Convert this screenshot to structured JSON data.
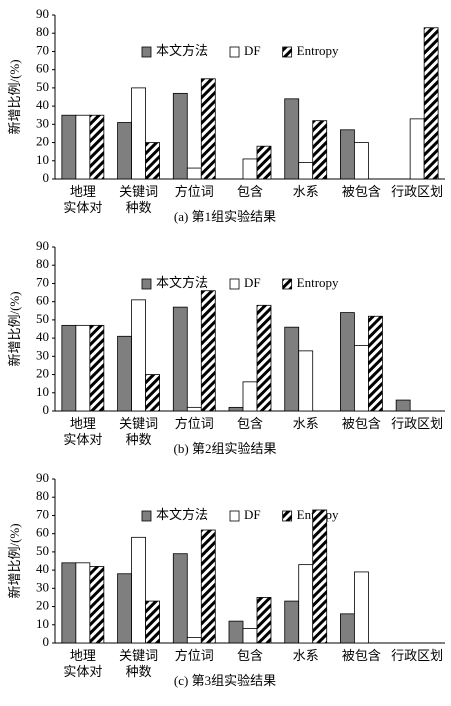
{
  "chart_data": [
    {
      "type": "bar",
      "title": "(a) 第1组实验结果",
      "y_label": "新增比例/(%)",
      "categories": [
        "地理\n实体对",
        "关键词\n种数",
        "方位词",
        "包含",
        "水系",
        "被包含",
        "行政区划"
      ],
      "series": [
        {
          "name": "本文方法",
          "color": "#7f7f7f",
          "values": [
            35,
            31,
            47,
            0,
            44,
            27,
            0
          ]
        },
        {
          "name": "DF",
          "color": "#ffffff",
          "values": [
            35,
            50,
            6,
            11,
            9,
            20,
            33
          ]
        },
        {
          "name": "Entropy",
          "color": "#000000",
          "hatch": true,
          "values": [
            35,
            20,
            55,
            18,
            32,
            0,
            83
          ]
        }
      ],
      "ylim": [
        0,
        90
      ],
      "yticks": [
        0,
        10,
        20,
        30,
        40,
        50,
        60,
        70,
        80,
        90
      ],
      "grid": false
    },
    {
      "type": "bar",
      "title": "(b) 第2组实验结果",
      "y_label": "新增比例/(%)",
      "categories": [
        "地理\n实体对",
        "关键词\n种数",
        "方位词",
        "包含",
        "水系",
        "被包含",
        "行政区划"
      ],
      "series": [
        {
          "name": "本文方法",
          "color": "#7f7f7f",
          "values": [
            47,
            41,
            57,
            2,
            46,
            54,
            6
          ]
        },
        {
          "name": "DF",
          "color": "#ffffff",
          "values": [
            47,
            61,
            2,
            16,
            33,
            36,
            0
          ]
        },
        {
          "name": "Entropy",
          "color": "#000000",
          "hatch": true,
          "values": [
            47,
            20,
            66,
            58,
            0,
            52,
            0
          ]
        }
      ],
      "ylim": [
        0,
        90
      ],
      "yticks": [
        0,
        10,
        20,
        30,
        40,
        50,
        60,
        70,
        80,
        90
      ],
      "grid": false
    },
    {
      "type": "bar",
      "title": "(c) 第3组实验结果",
      "y_label": "新增比例/(%)",
      "categories": [
        "地理\n实体对",
        "关键词\n种数",
        "方位词",
        "包含",
        "水系",
        "被包含",
        "行政区划"
      ],
      "series": [
        {
          "name": "本文方法",
          "color": "#7f7f7f",
          "values": [
            44,
            38,
            49,
            12,
            23,
            16,
            0
          ]
        },
        {
          "name": "DF",
          "color": "#ffffff",
          "values": [
            44,
            58,
            3,
            8,
            43,
            39,
            0
          ]
        },
        {
          "name": "Entropy",
          "color": "#000000",
          "hatch": true,
          "values": [
            42,
            23,
            62,
            25,
            73,
            0,
            0
          ]
        }
      ],
      "ylim": [
        0,
        90
      ],
      "yticks": [
        0,
        10,
        20,
        30,
        40,
        50,
        60,
        70,
        80,
        90
      ],
      "grid": false
    }
  ]
}
